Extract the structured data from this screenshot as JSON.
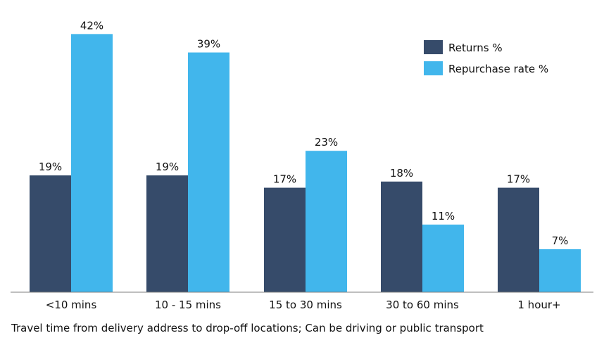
{
  "chart_data": {
    "type": "bar",
    "categories": [
      "<10 mins",
      "10 - 15 mins",
      "15 to 30 mins",
      "30 to 60 mins",
      "1 hour+"
    ],
    "series": [
      {
        "name": "Returns %",
        "values": [
          19,
          19,
          17,
          18,
          17
        ],
        "labels": [
          "19%",
          "19%",
          "17%",
          "18%",
          "17%"
        ],
        "color": "#364b6a"
      },
      {
        "name": "Repurchase rate %",
        "values": [
          42,
          39,
          23,
          11,
          7
        ],
        "labels": [
          "42%",
          "39%",
          "23%",
          "11%",
          "7%"
        ],
        "color": "#41b6ec"
      }
    ],
    "ylim": [
      0,
      43
    ],
    "grid": false,
    "legend_position": "top-right",
    "xlabel": "Travel time from delivery address to drop-off locations; Can be driving or public transport"
  }
}
